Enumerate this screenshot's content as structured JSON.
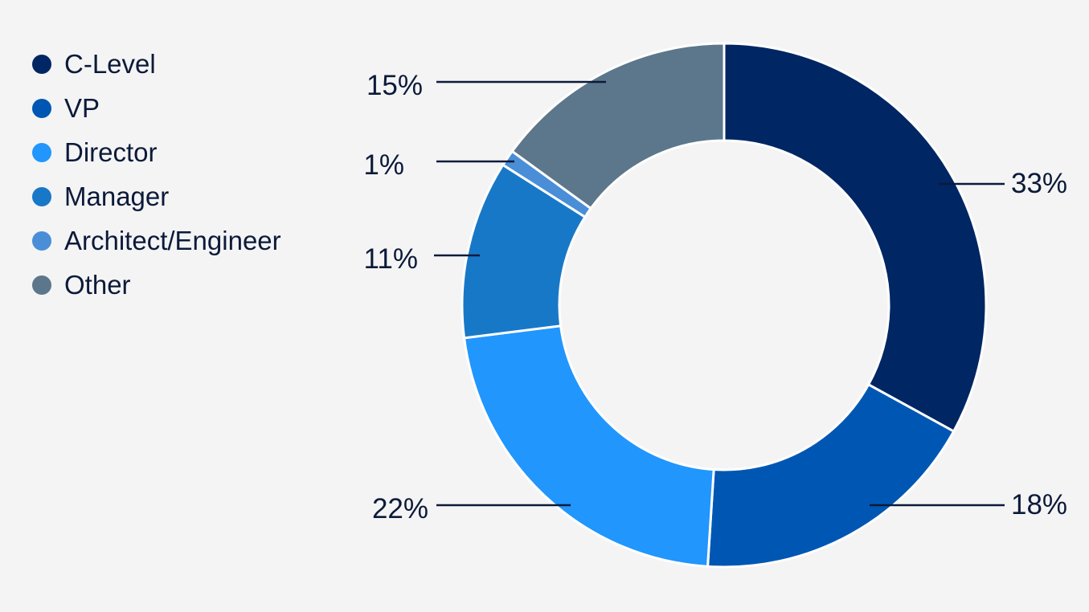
{
  "chart_data": {
    "type": "pie",
    "categories": [
      "C-Level",
      "VP",
      "Director",
      "Manager",
      "Architect/Engineer",
      "Other"
    ],
    "values": [
      33,
      18,
      22,
      11,
      1,
      15
    ],
    "labels": [
      "33%",
      "18%",
      "22%",
      "11%",
      "1%",
      "15%"
    ],
    "colors": [
      "#002663",
      "#0057b3",
      "#2196fd",
      "#1878c8",
      "#4a8ed8",
      "#5c778b"
    ],
    "donut": true,
    "legend_position": "top-left"
  }
}
